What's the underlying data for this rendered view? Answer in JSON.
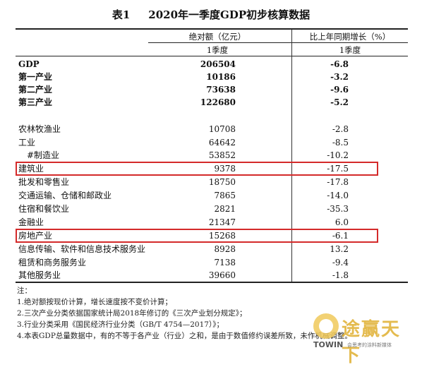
{
  "title": {
    "table_no": "表1",
    "text": "2020年一季度GDP初步核算数据"
  },
  "header": {
    "col1": "绝对额（亿元）",
    "col2": "比上年同期增长（%）",
    "col1_sub": "1季度",
    "col2_sub": "1季度"
  },
  "rows": [
    {
      "name": "GDP",
      "value": "206504",
      "growth": "-6.8"
    },
    {
      "name": "第一产业",
      "value": "10186",
      "growth": "-3.2"
    },
    {
      "name": "第二产业",
      "value": "73638",
      "growth": "-9.6"
    },
    {
      "name": "第三产业",
      "value": "122680",
      "growth": "-5.2"
    },
    {
      "name": "农林牧渔业",
      "value": "10708",
      "growth": "-2.8"
    },
    {
      "name": "工业",
      "value": "64642",
      "growth": "-8.5"
    },
    {
      "name": "#制造业",
      "value": "53852",
      "growth": "-10.2"
    },
    {
      "name": "建筑业",
      "value": "9378",
      "growth": "-17.5"
    },
    {
      "name": "批发和零售业",
      "value": "18750",
      "growth": "-17.8"
    },
    {
      "name": "交通运输、仓储和邮政业",
      "value": "7865",
      "growth": "-14.0"
    },
    {
      "name": "住宿和餐饮业",
      "value": "2821",
      "growth": "-35.3"
    },
    {
      "name": "金融业",
      "value": "21347",
      "growth": "6.0"
    },
    {
      "name": "房地产业",
      "value": "15268",
      "growth": "-6.1"
    },
    {
      "name": "信息传输、软件和信息技术服务业",
      "value": "8928",
      "growth": "13.2"
    },
    {
      "name": "租赁和商务服务业",
      "value": "7138",
      "growth": "-9.4"
    },
    {
      "name": "其他服务业",
      "value": "39660",
      "growth": "-1.8"
    }
  ],
  "notes": [
    "注：",
    "1.绝对额按现价计算，增长速度按不变价计算；",
    "2.三次产业分类依据国家统计局2018年修订的《三次产业划分规定》；",
    "3.行业分类采用《国民经济行业分类（GB/T 4754—2017）》；",
    "4.本表GDP总量数据中，有的不等于各产业（行业）之和，是由于数值修约误差所致，未作机械调整。"
  ],
  "watermark": {
    "brand": "途赢天下",
    "brand_en": "TOWIN",
    "sub": "会思考的涂料新媒体"
  },
  "colors": {
    "highlight_box": "#d42a2a",
    "watermark": "#e2b43c"
  }
}
